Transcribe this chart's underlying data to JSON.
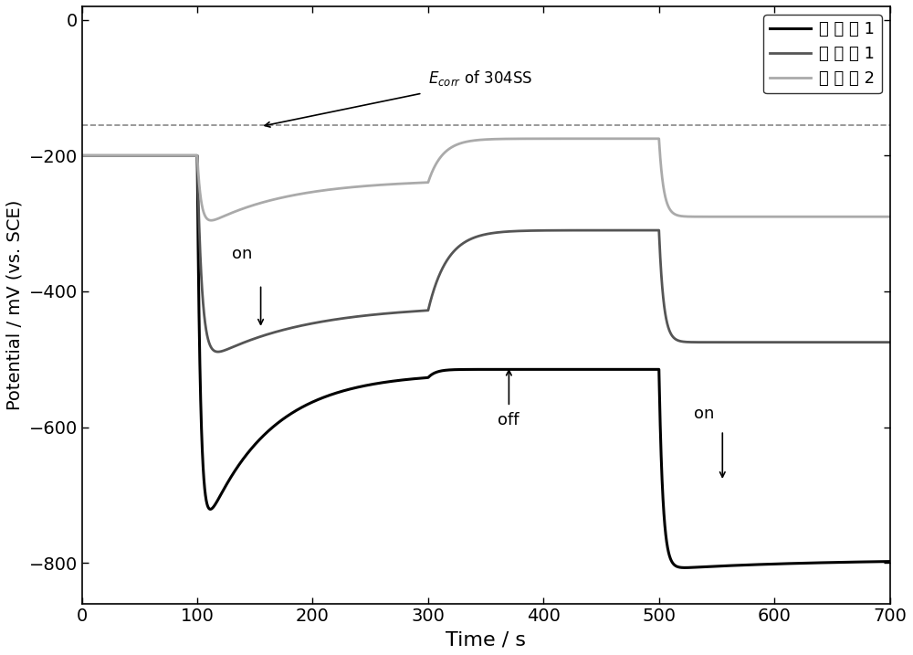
{
  "xlim": [
    0,
    700
  ],
  "ylim": [
    -860,
    20
  ],
  "yticks": [
    0,
    -200,
    -400,
    -600,
    -800
  ],
  "xticks": [
    0,
    100,
    200,
    300,
    400,
    500,
    600,
    700
  ],
  "xlabel": "Time / s",
  "ylabel": "Potential / mV (vs. SCE)",
  "ecorr_line_y": -155,
  "ecorr_suffix": " of 304SS",
  "color_s1": "#000000",
  "color_s2": "#555555",
  "color_s3": "#aaaaaa",
  "color_ecorr": "#888888",
  "legend_labels": [
    "实 施 例 1",
    "比 较 例 1",
    "比 较 例 2"
  ],
  "lw_s1": 2.2,
  "lw_s2": 2.0,
  "lw_s3": 2.0,
  "light_on1": 100,
  "light_off": 300,
  "light_on2": 500
}
